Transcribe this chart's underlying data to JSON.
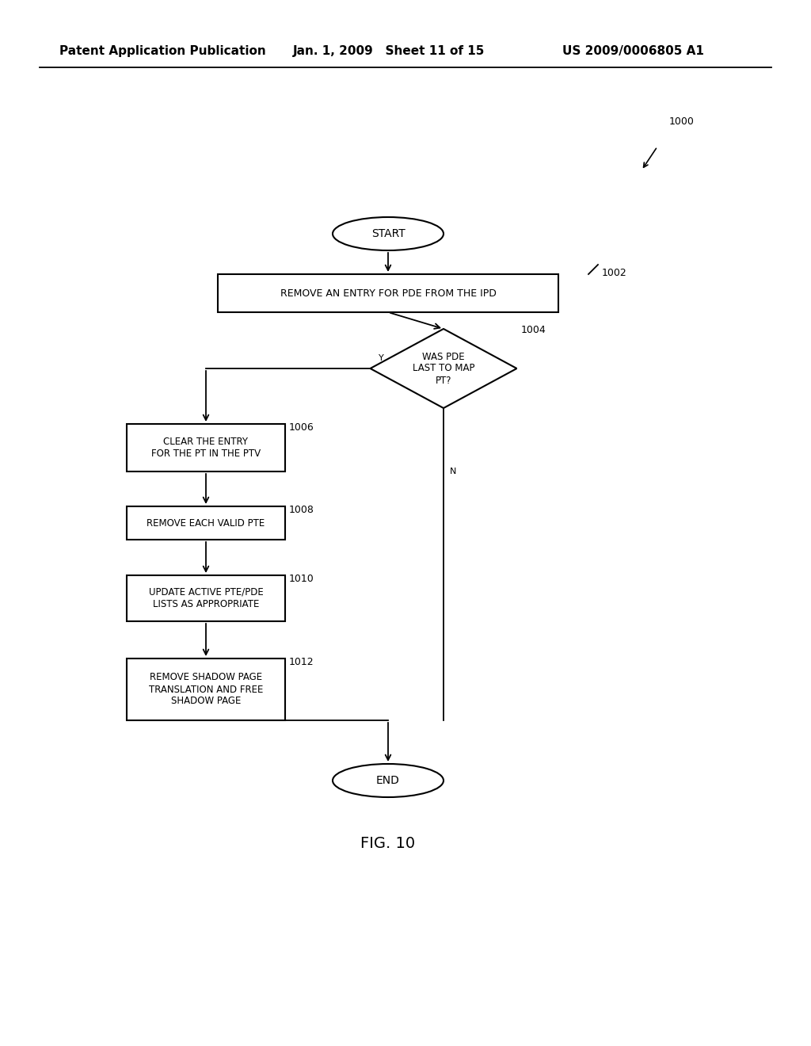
{
  "bg_color": "#ffffff",
  "header_left": "Patent Application Publication",
  "header_mid": "Jan. 1, 2009   Sheet 11 of 15",
  "header_right": "US 2009/0006805 A1",
  "fig_label": "FIG. 10",
  "line_color": "#000000",
  "text_color": "#000000",
  "font_size_header": 11,
  "font_size_node": 9,
  "font_size_ref": 9,
  "font_size_fig": 14,
  "start_text": "START",
  "box1_text": "REMOVE AN ENTRY FOR PDE FROM THE IPD",
  "diamond_text": "WAS PDE\nLAST TO MAP\nPT?",
  "box2_text": "CLEAR THE ENTRY\nFOR THE PT IN THE PTV",
  "box3_text": "REMOVE EACH VALID PTE",
  "box4_text": "UPDATE ACTIVE PTE/PDE\nLISTS AS APPROPRIATE",
  "box5_text": "REMOVE SHADOW PAGE\nTRANSLATION AND FREE\nSHADOW PAGE",
  "end_text": "END",
  "ref1000": "1000",
  "ref1002": "1002",
  "ref1004": "1004",
  "ref1006": "1006",
  "ref1008": "1008",
  "ref1010": "1010",
  "ref1012": "1012"
}
